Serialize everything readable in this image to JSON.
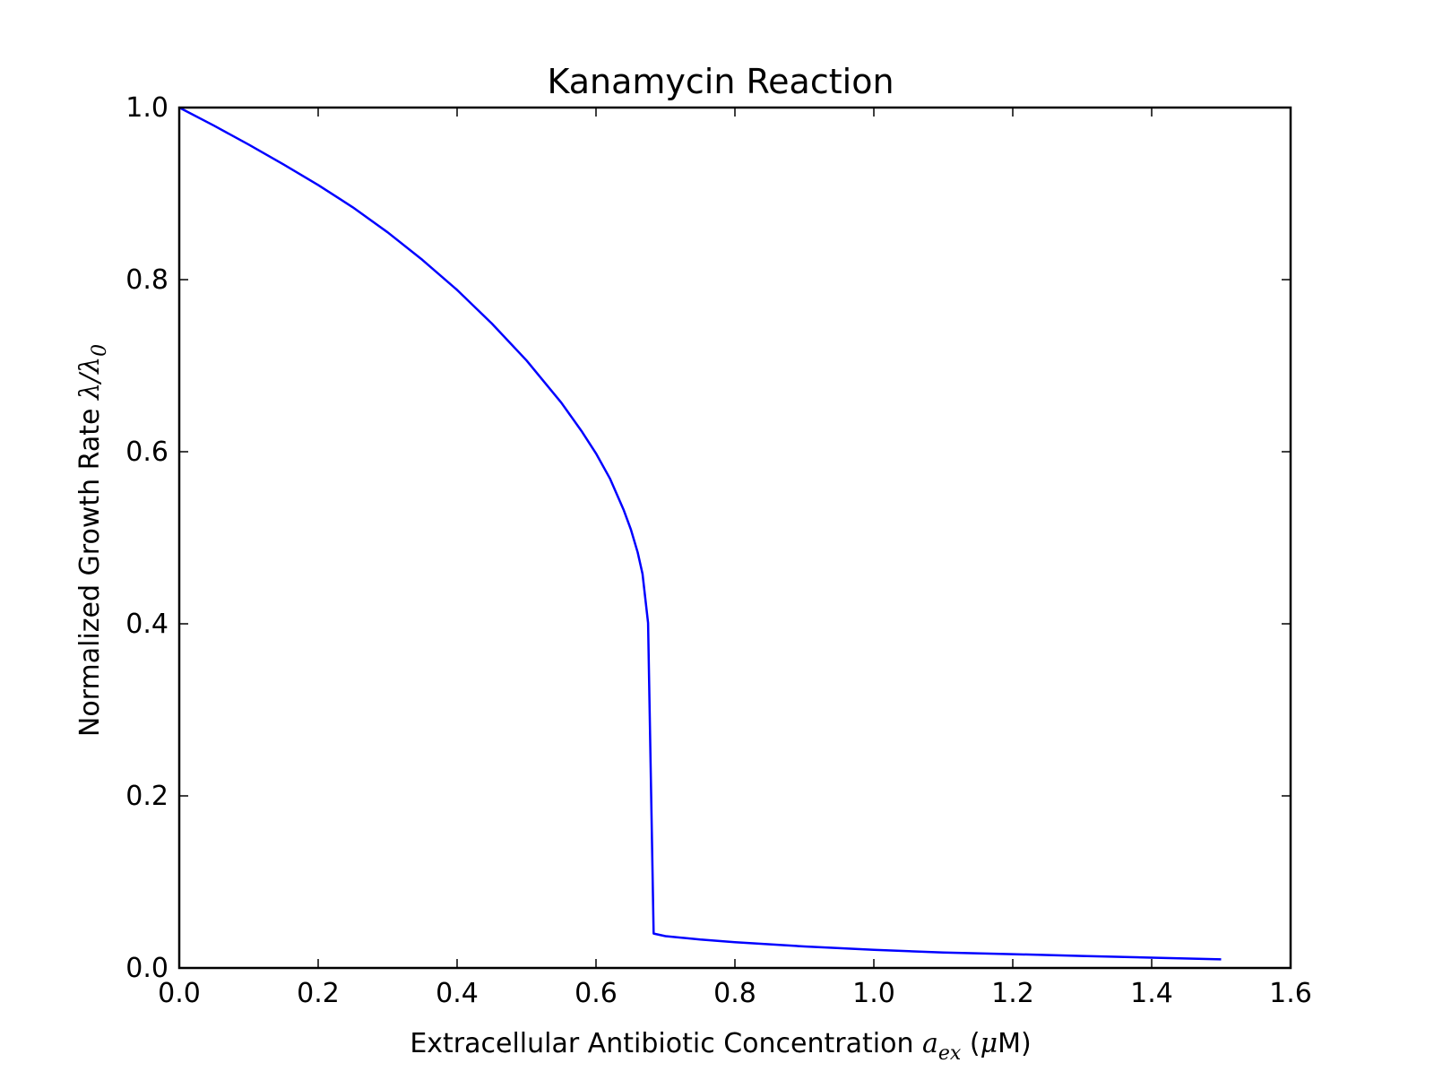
{
  "chart_data": {
    "type": "line",
    "title": "Kanamycin Reaction",
    "xlabel": {
      "prefix": "Extracellular Antibiotic Concentration ",
      "var": "a",
      "sub": "ex",
      "unit_open": " (",
      "unit_mu": "μ",
      "unit_rest": "M)"
    },
    "ylabel": {
      "prefix": "Normalized Growth Rate ",
      "var1": "λ",
      "slash": "/",
      "var2": "λ",
      "sub": "0"
    },
    "xlim": [
      0.0,
      1.6
    ],
    "ylim": [
      0.0,
      1.0
    ],
    "xticks": [
      "0.0",
      "0.2",
      "0.4",
      "0.6",
      "0.8",
      "1.0",
      "1.2",
      "1.4",
      "1.6"
    ],
    "yticks": [
      "0.0",
      "0.2",
      "0.4",
      "0.6",
      "0.8",
      "1.0"
    ],
    "grid": false,
    "series": [
      {
        "color": "#0000ff",
        "x": [
          0.0,
          0.05,
          0.1,
          0.15,
          0.2,
          0.25,
          0.3,
          0.35,
          0.4,
          0.45,
          0.5,
          0.55,
          0.58,
          0.6,
          0.62,
          0.64,
          0.65,
          0.66,
          0.667,
          0.675,
          0.683,
          0.7,
          0.75,
          0.8,
          0.9,
          1.0,
          1.1,
          1.2,
          1.3,
          1.4,
          1.5
        ],
        "y": [
          1.0,
          0.979,
          0.957,
          0.934,
          0.91,
          0.884,
          0.855,
          0.823,
          0.788,
          0.749,
          0.706,
          0.657,
          0.623,
          0.598,
          0.569,
          0.532,
          0.51,
          0.483,
          0.458,
          0.401,
          0.04,
          0.037,
          0.033,
          0.03,
          0.025,
          0.021,
          0.018,
          0.016,
          0.014,
          0.012,
          0.01
        ]
      }
    ]
  }
}
